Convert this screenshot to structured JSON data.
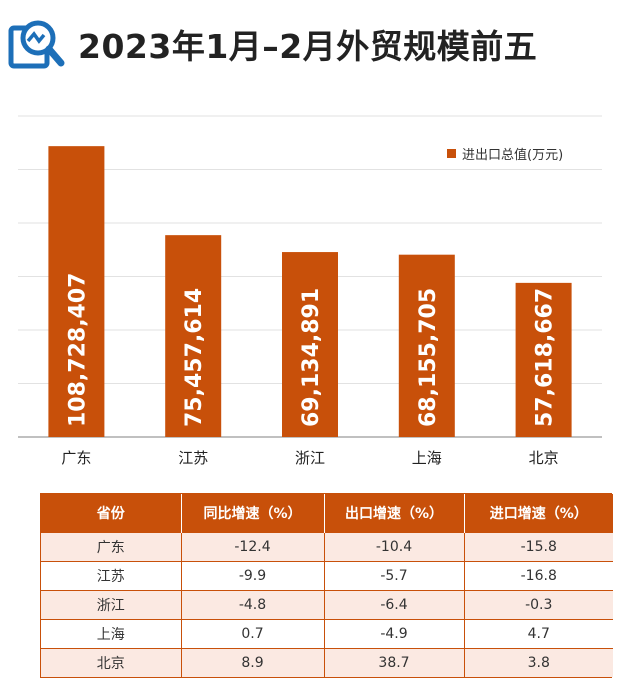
{
  "header": {
    "title": "2023年1月–2月外贸规模前五",
    "logo_icon": "magnifier-chart-icon"
  },
  "colors": {
    "bar": "#c8500a",
    "bar_label": "#ffffff",
    "table_header": "#c8500a",
    "row_tint": "#fbe9e2",
    "logo_blue": "#1d6fb8"
  },
  "chart_data": {
    "type": "bar",
    "categories": [
      "广东",
      "江苏",
      "浙江",
      "上海",
      "北京"
    ],
    "series": [
      {
        "name": "进出口总值(万元)",
        "values": [
          108728407,
          75457614,
          69134891,
          68155705,
          57618667
        ],
        "labels": [
          "108,728,407",
          "75,457,614",
          "69,134,891",
          "68,155,705",
          "57,618,667"
        ]
      }
    ],
    "ylim": [
      0,
      120000000
    ],
    "grid": true,
    "legend": "top-right"
  },
  "table": {
    "headers": [
      "省份",
      "同比增速（%）",
      "出口增速（%）",
      "进口增速（%）"
    ],
    "rows": [
      [
        "广东",
        "-12.4",
        "-10.4",
        "-15.8"
      ],
      [
        "江苏",
        "-9.9",
        "-5.7",
        "-16.8"
      ],
      [
        "浙江",
        "-4.8",
        "-6.4",
        "-0.3"
      ],
      [
        "上海",
        "0.7",
        "-4.9",
        "4.7"
      ],
      [
        "北京",
        "8.9",
        "38.7",
        "3.8"
      ]
    ]
  }
}
